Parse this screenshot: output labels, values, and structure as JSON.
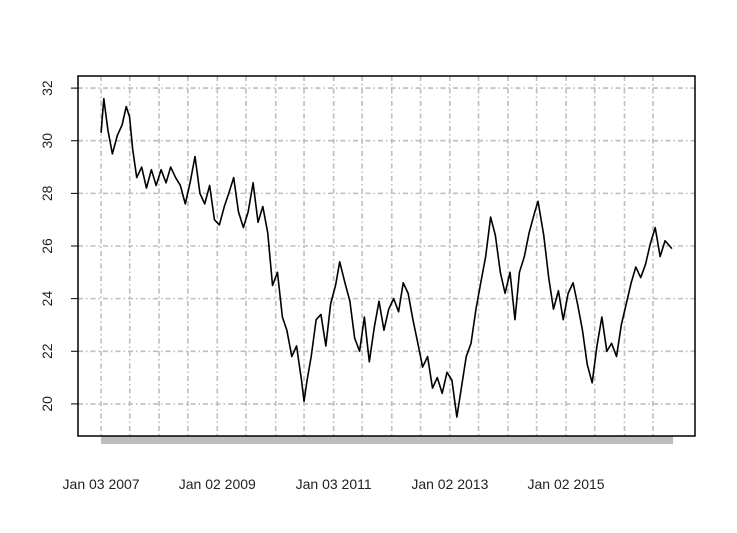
{
  "chart_data": {
    "type": "line",
    "color": "#000000",
    "grid": true,
    "ylim": [
      18.78,
      32.46
    ],
    "yticks": [
      20,
      22,
      24,
      26,
      28,
      30,
      32
    ],
    "xlim": [
      "2006-08-11",
      "2017-03-22"
    ],
    "xticks": [
      {
        "value": "2007-01-03",
        "label": "Jan 03 2007"
      },
      {
        "value": "2009-01-02",
        "label": "Jan 02 2009"
      },
      {
        "value": "2011-01-03",
        "label": "Jan 03 2011"
      },
      {
        "value": "2013-01-02",
        "label": "Jan 02 2013"
      },
      {
        "value": "2015-01-02",
        "label": "Jan 02 2015"
      }
    ],
    "xgrid": [
      "2007-01-03",
      "2007-07-02",
      "2008-01-02",
      "2008-07-01",
      "2009-01-02",
      "2009-07-01",
      "2010-01-04",
      "2010-07-01",
      "2011-01-03",
      "2011-07-01",
      "2012-01-03",
      "2012-07-02",
      "2013-01-02",
      "2013-07-01",
      "2014-01-02",
      "2014-07-01",
      "2015-01-02",
      "2015-07-01",
      "2016-01-04",
      "2016-07-01"
    ],
    "x": [
      "2007-01-03",
      "2007-01-20",
      "2007-02-15",
      "2007-03-15",
      "2007-04-15",
      "2007-05-15",
      "2007-06-10",
      "2007-07-01",
      "2007-07-20",
      "2007-08-15",
      "2007-09-15",
      "2007-10-15",
      "2007-11-15",
      "2007-12-15",
      "2008-01-15",
      "2008-02-15",
      "2008-03-15",
      "2008-04-15",
      "2008-05-15",
      "2008-06-15",
      "2008-07-15",
      "2008-08-15",
      "2008-09-15",
      "2008-10-15",
      "2008-11-15",
      "2008-12-15",
      "2009-01-15",
      "2009-02-15",
      "2009-03-15",
      "2009-04-15",
      "2009-05-15",
      "2009-06-15",
      "2009-07-15",
      "2009-08-15",
      "2009-09-15",
      "2009-10-15",
      "2009-11-15",
      "2009-12-15",
      "2010-01-15",
      "2010-02-15",
      "2010-03-15",
      "2010-04-15",
      "2010-05-15",
      "2010-06-15",
      "2010-07-01",
      "2010-07-20",
      "2010-08-15",
      "2010-09-15",
      "2010-10-15",
      "2010-11-15",
      "2010-12-15",
      "2011-01-15",
      "2011-02-10",
      "2011-03-15",
      "2011-04-15",
      "2011-05-15",
      "2011-06-15",
      "2011-07-15",
      "2011-08-15",
      "2011-09-15",
      "2011-10-15",
      "2011-11-15",
      "2011-12-15",
      "2012-01-15",
      "2012-02-15",
      "2012-03-15",
      "2012-04-15",
      "2012-05-15",
      "2012-06-15",
      "2012-07-15",
      "2012-08-15",
      "2012-09-15",
      "2012-10-15",
      "2012-11-15",
      "2012-12-15",
      "2013-01-15",
      "2013-02-15",
      "2013-03-15",
      "2013-04-15",
      "2013-05-15",
      "2013-06-15",
      "2013-07-15",
      "2013-08-15",
      "2013-09-15",
      "2013-10-15",
      "2013-11-15",
      "2013-12-15",
      "2014-01-15",
      "2014-02-15",
      "2014-03-15",
      "2014-04-15",
      "2014-05-15",
      "2014-06-15",
      "2014-07-10",
      "2014-08-15",
      "2014-09-15",
      "2014-10-15",
      "2014-11-15",
      "2014-12-15",
      "2015-01-15",
      "2015-02-15",
      "2015-03-15",
      "2015-04-15",
      "2015-05-15",
      "2015-06-15",
      "2015-07-15",
      "2015-08-15",
      "2015-09-15",
      "2015-10-15",
      "2015-11-15",
      "2015-12-15",
      "2016-01-15",
      "2016-02-15",
      "2016-03-15",
      "2016-04-15",
      "2016-05-15",
      "2016-06-15",
      "2016-07-15",
      "2016-08-15",
      "2016-09-15",
      "2016-10-28"
    ],
    "values": [
      30.3,
      31.6,
      30.4,
      29.5,
      30.2,
      30.6,
      31.3,
      30.9,
      29.7,
      28.6,
      29.0,
      28.2,
      28.9,
      28.3,
      28.9,
      28.4,
      29.0,
      28.6,
      28.3,
      27.6,
      28.4,
      29.4,
      28.0,
      27.6,
      28.3,
      27.0,
      26.8,
      27.5,
      28.0,
      28.6,
      27.3,
      26.7,
      27.3,
      28.4,
      26.9,
      27.5,
      26.5,
      24.5,
      25.0,
      23.3,
      22.8,
      21.8,
      22.2,
      20.9,
      20.1,
      20.9,
      21.8,
      23.2,
      23.4,
      22.2,
      23.8,
      24.5,
      25.4,
      24.6,
      23.9,
      22.5,
      22.0,
      23.3,
      21.6,
      22.9,
      23.9,
      22.8,
      23.6,
      24.0,
      23.5,
      24.6,
      24.2,
      23.2,
      22.3,
      21.4,
      21.8,
      20.6,
      21.0,
      20.4,
      21.2,
      20.9,
      19.5,
      20.6,
      21.8,
      22.3,
      23.6,
      24.6,
      25.6,
      27.1,
      26.4,
      25.0,
      24.2,
      25.0,
      23.2,
      25.0,
      25.6,
      26.5,
      27.2,
      27.7,
      26.4,
      24.8,
      23.6,
      24.3,
      23.2,
      24.2,
      24.6,
      23.8,
      22.8,
      21.5,
      20.8,
      22.2,
      23.3,
      22.0,
      22.3,
      21.8,
      23.0,
      23.8,
      24.6,
      25.2,
      24.8,
      25.3,
      26.1,
      26.7,
      25.6,
      26.2,
      25.9
    ]
  }
}
